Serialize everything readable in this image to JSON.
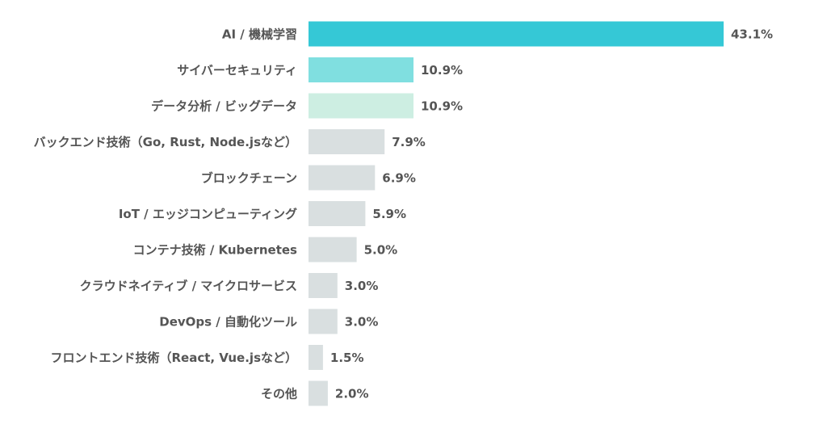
{
  "chart_data": {
    "type": "bar",
    "orientation": "horizontal",
    "categories": [
      "AI / 機械学習",
      "サイバーセキュリティ",
      "データ分析 / ビッグデータ",
      "バックエンド技術（Go, Rust, Node.jsなど）",
      "ブロックチェーン",
      "IoT / エッジコンピューティング",
      "コンテナ技術 / Kubernetes",
      "クラウドネイティブ / マイクロサービス",
      "DevOps / 自動化ツール",
      "フロントエンド技術（React, Vue.jsなど）",
      "その他"
    ],
    "values": [
      43.1,
      10.9,
      10.9,
      7.9,
      6.9,
      5.9,
      5.0,
      3.0,
      3.0,
      1.5,
      2.0
    ],
    "value_labels": [
      "43.1%",
      "10.9%",
      "10.9%",
      "7.9%",
      "6.9%",
      "5.9%",
      "5.0%",
      "3.0%",
      "3.0%",
      "1.5%",
      "2.0%"
    ],
    "bar_colors": [
      "#35c8d6",
      "#80dfe0",
      "#cdeee2",
      "#d9dfe0",
      "#d9dfe0",
      "#d9dfe0",
      "#d9dfe0",
      "#d9dfe0",
      "#d9dfe0",
      "#d9dfe0",
      "#d9dfe0"
    ],
    "label_color": "#555555",
    "xlim": [
      0,
      43.1
    ],
    "grid": false,
    "legend": "none"
  }
}
